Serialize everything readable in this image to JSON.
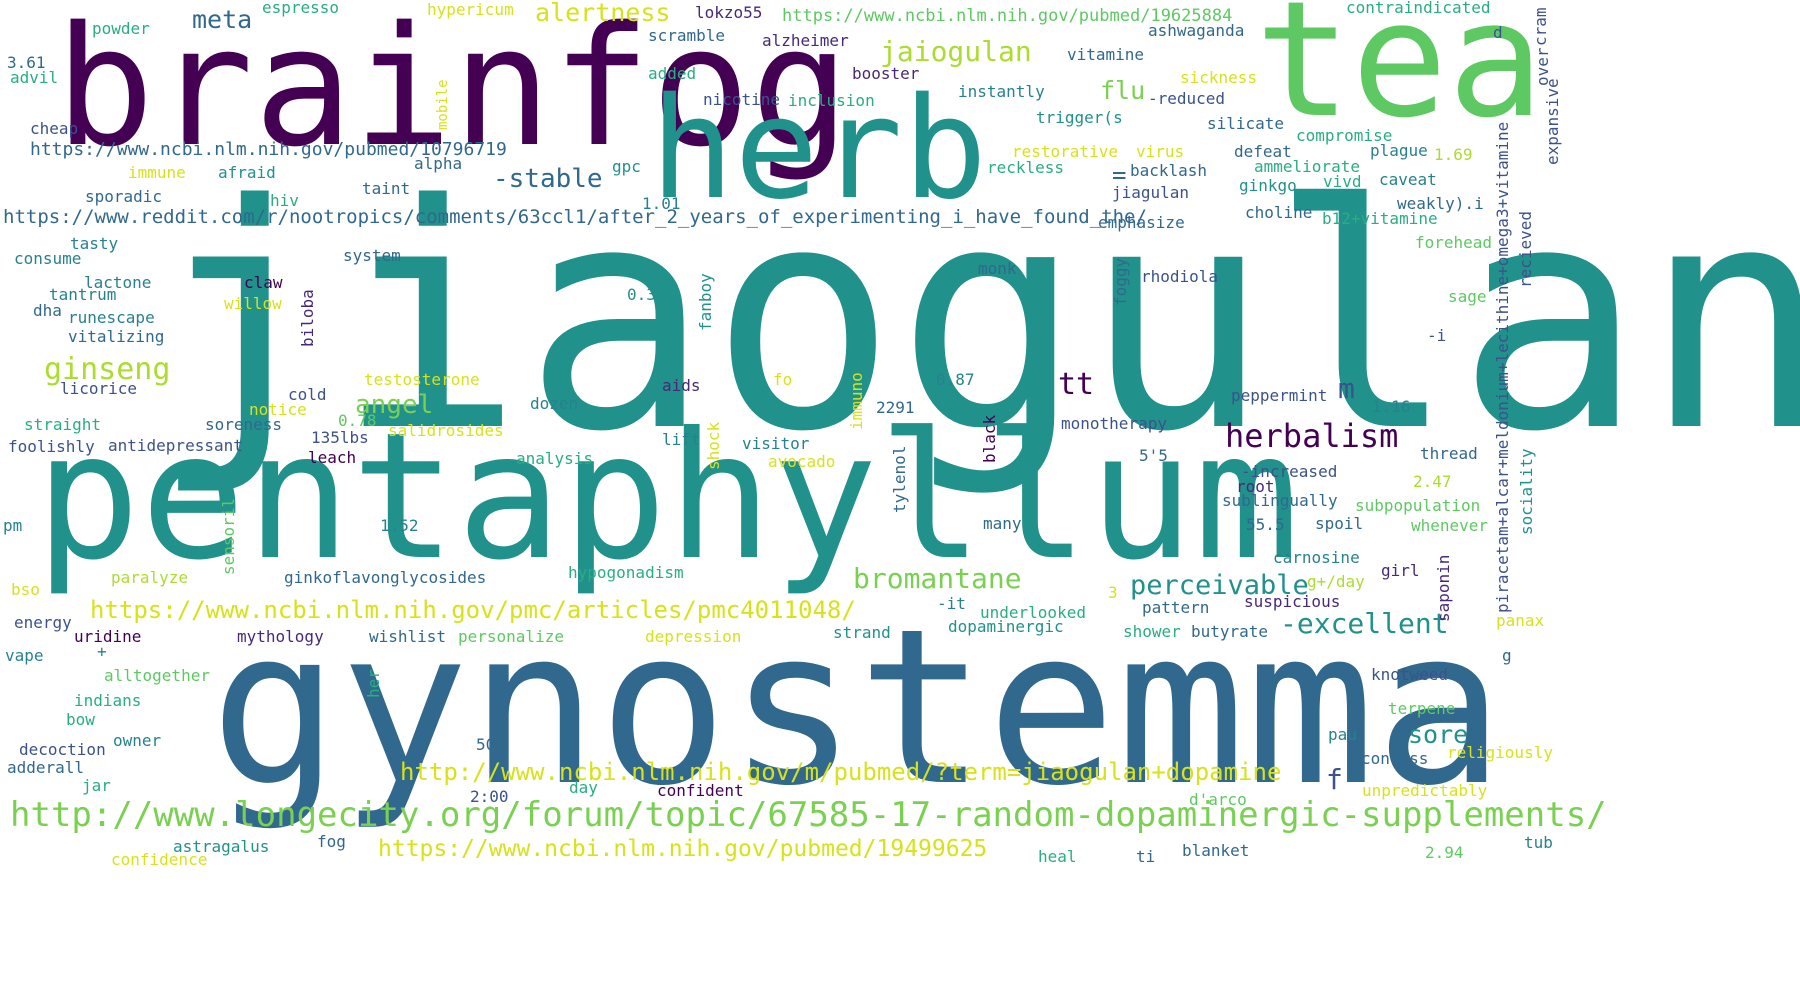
{
  "palette": {
    "c1": "#440154",
    "c2": "#472c7a",
    "c3": "#3b528b",
    "c4": "#2c728e",
    "c5": "#21918c",
    "c6": "#28ae80",
    "c7": "#5ec962",
    "c8": "#addc30",
    "c9": "#d8e219"
  },
  "words": [
    {
      "text": "jiaogulan",
      "color": "#21918c"
    },
    {
      "text": "gynostemma",
      "color": "#31688e"
    },
    {
      "text": "pentaphyllum",
      "color": "#21918c"
    },
    {
      "text": "brainfog",
      "color": "#440154"
    },
    {
      "text": "tea",
      "color": "#5ec962"
    },
    {
      "text": "herb",
      "color": "#21918c"
    },
    {
      "text": "http://www.longecity.org/forum/topic/67585-17-random-dopaminergic-supplements/",
      "color": "#7ad151"
    },
    {
      "text": "https://www.ncbi.nlm.nih.gov/pmc/articles/pmc4011048/",
      "color": "#d8e219"
    },
    {
      "text": "http://www.ncbi.nlm.nih.gov/m/pubmed/?term=jiaogulan+dopamine",
      "color": "#d8e219"
    },
    {
      "text": "https://www.ncbi.nlm.nih.gov/pubmed/19499625",
      "color": "#d8e219"
    },
    {
      "text": "https://www.reddit.com/r/nootropics/comments/63ccl1/after_2_years_of_experimenting_i_have_found_the/",
      "color": "#31688e"
    },
    {
      "text": "https://www.ncbi.nlm.nih.gov/pubmed/10796719",
      "color": "#31688e"
    },
    {
      "text": "https://www.ncbi.nlm.nih.gov/pubmed/19625884",
      "color": "#5ec962"
    },
    {
      "text": "herbalism",
      "color": "#440154"
    },
    {
      "text": "bromantane",
      "color": "#7ad151"
    },
    {
      "text": "-excellent",
      "color": "#21918c"
    },
    {
      "text": "perceivable",
      "color": "#21918c"
    },
    {
      "text": "ginseng",
      "color": "#addc30"
    },
    {
      "text": "jaiogulan",
      "color": "#addc30"
    },
    {
      "text": "alertness",
      "color": "#d8e219"
    },
    {
      "text": "-stable",
      "color": "#31688e"
    },
    {
      "text": "meta",
      "color": "#31688e"
    },
    {
      "text": "angel",
      "color": "#7ad151"
    },
    {
      "text": "tt",
      "color": "#440154"
    },
    {
      "text": "flu",
      "color": "#7ad151"
    },
    {
      "text": "sore",
      "color": "#21918c"
    },
    {
      "text": "m",
      "color": "#3b528b"
    },
    {
      "text": "f",
      "color": "#3b528b"
    },
    {
      "text": "=",
      "color": "#31688e"
    },
    {
      "text": "piracetam+alcar+meldonium+lecithine+omega3+vitamine",
      "color": "#3b528b"
    },
    {
      "text": "contraindicated",
      "color": "#28ae80"
    },
    {
      "text": "ashwaganda",
      "color": "#31688e"
    },
    {
      "text": "vitamine",
      "color": "#31688e"
    },
    {
      "text": "espresso",
      "color": "#28ae80"
    },
    {
      "text": "hypericum",
      "color": "#d8e219"
    },
    {
      "text": "lokzo55",
      "color": "#482878"
    },
    {
      "text": "scramble",
      "color": "#31688e"
    },
    {
      "text": "alzheimer",
      "color": "#482878"
    },
    {
      "text": "powder",
      "color": "#28ae80"
    },
    {
      "text": "3.61",
      "color": "#31688e"
    },
    {
      "text": "advil",
      "color": "#28ae80"
    },
    {
      "text": "mobile",
      "color": "#d8e219"
    },
    {
      "text": "added",
      "color": "#28ae80"
    },
    {
      "text": "booster",
      "color": "#482878"
    },
    {
      "text": "sickness",
      "color": "#d8e219"
    },
    {
      "text": "instantly",
      "color": "#26828e"
    },
    {
      "text": "nicotine",
      "color": "#3b528b"
    },
    {
      "text": "inclusion",
      "color": "#28ae80"
    },
    {
      "text": "-reduced",
      "color": "#3b528b"
    },
    {
      "text": "trigger(s",
      "color": "#21918c"
    },
    {
      "text": "silicate",
      "color": "#31688e"
    },
    {
      "text": "compromise",
      "color": "#28ae80"
    },
    {
      "text": "cheap",
      "color": "#3b528b"
    },
    {
      "text": "alpha",
      "color": "#31688e"
    },
    {
      "text": "restorative",
      "color": "#d8e219"
    },
    {
      "text": "defeat",
      "color": "#31688e"
    },
    {
      "text": "plague",
      "color": "#26828e"
    },
    {
      "text": "1.69",
      "color": "#addc30"
    },
    {
      "text": "immune",
      "color": "#d8e219"
    },
    {
      "text": "afraid",
      "color": "#21918c"
    },
    {
      "text": "gpc",
      "color": "#21918c"
    },
    {
      "text": "virus",
      "color": "#d8e219"
    },
    {
      "text": "ammeliorate",
      "color": "#28ae80"
    },
    {
      "text": "reckless",
      "color": "#28ae80"
    },
    {
      "text": "backlash",
      "color": "#31688e"
    },
    {
      "text": "vivd",
      "color": "#28ae80"
    },
    {
      "text": "caveat",
      "color": "#26828e"
    },
    {
      "text": "taint",
      "color": "#31688e"
    },
    {
      "text": "hiv",
      "color": "#28ae80"
    },
    {
      "text": "sporadic",
      "color": "#31688e"
    },
    {
      "text": "jiagulan",
      "color": "#3b528b"
    },
    {
      "text": "ginkgo",
      "color": "#21918c"
    },
    {
      "text": "1.01",
      "color": "#26828e"
    },
    {
      "text": "choline",
      "color": "#31688e"
    },
    {
      "text": "b12+vitamine",
      "color": "#28ae80"
    },
    {
      "text": "weakly).i",
      "color": "#31688e"
    },
    {
      "text": "emphasize",
      "color": "#31688e"
    },
    {
      "text": "tasty",
      "color": "#26828e"
    },
    {
      "text": "system",
      "color": "#31688e"
    },
    {
      "text": "consume",
      "color": "#26828e"
    },
    {
      "text": "forehead",
      "color": "#5ec962"
    },
    {
      "text": "recieved",
      "color": "#3b528b"
    },
    {
      "text": "expansive",
      "color": "#3b528b"
    },
    {
      "text": "over",
      "color": "#3b528b"
    },
    {
      "text": "cram",
      "color": "#3b528b"
    },
    {
      "text": "d",
      "color": "#3b528b"
    },
    {
      "text": "monk",
      "color": "#31688e"
    },
    {
      "text": "foggy",
      "color": "#31688e"
    },
    {
      "text": "rhodiola",
      "color": "#3b528b"
    },
    {
      "text": "lactone",
      "color": "#26828e"
    },
    {
      "text": "claw",
      "color": "#440154"
    },
    {
      "text": "tantrum",
      "color": "#26828e"
    },
    {
      "text": "willow",
      "color": "#d8e219"
    },
    {
      "text": "fanboy",
      "color": "#21918c"
    },
    {
      "text": "biloba",
      "color": "#482878"
    },
    {
      "text": "0.3",
      "color": "#21918c"
    },
    {
      "text": "dha",
      "color": "#31688e"
    },
    {
      "text": "runescape",
      "color": "#26828e"
    },
    {
      "text": "vitalizing",
      "color": "#31688e"
    },
    {
      "text": "sage",
      "color": "#5ec962"
    },
    {
      "text": "-i",
      "color": "#3b528b"
    },
    {
      "text": "licorice",
      "color": "#3b528b"
    },
    {
      "text": "testosterone",
      "color": "#d8e219"
    },
    {
      "text": "fo",
      "color": "#d8e219"
    },
    {
      "text": "immuno",
      "color": "#d8e219"
    },
    {
      "text": "0.87",
      "color": "#26828e"
    },
    {
      "text": "aids",
      "color": "#482878"
    },
    {
      "text": "cold",
      "color": "#3b528b"
    },
    {
      "text": "dozen",
      "color": "#26828e"
    },
    {
      "text": "peppermint",
      "color": "#3b528b"
    },
    {
      "text": "1.16",
      "color": "#26828e"
    },
    {
      "text": "notice",
      "color": "#d8e219"
    },
    {
      "text": "0.78",
      "color": "#5ec962"
    },
    {
      "text": "straight",
      "color": "#28ae80"
    },
    {
      "text": "soreness",
      "color": "#31688e"
    },
    {
      "text": "135lbs",
      "color": "#3b528b"
    },
    {
      "text": "2291",
      "color": "#31688e"
    },
    {
      "text": "monotherapy",
      "color": "#3b528b"
    },
    {
      "text": "salidrosides",
      "color": "#d8e219"
    },
    {
      "text": "shock",
      "color": "#d8e219"
    },
    {
      "text": "foolishly",
      "color": "#3b528b"
    },
    {
      "text": "antidepressant",
      "color": "#3b528b"
    },
    {
      "text": "leach",
      "color": "#440154"
    },
    {
      "text": "lift",
      "color": "#26828e"
    },
    {
      "text": "visitor",
      "color": "#26828e"
    },
    {
      "text": "euro",
      "color": "#21918c"
    },
    {
      "text": "black",
      "color": "#440154"
    },
    {
      "text": "thread",
      "color": "#31688e"
    },
    {
      "text": "analysis",
      "color": "#28ae80"
    },
    {
      "text": "avocado",
      "color": "#d8e219"
    },
    {
      "text": "tylenol",
      "color": "#31688e"
    },
    {
      "text": "5'5",
      "color": "#31688e"
    },
    {
      "text": "-increased",
      "color": "#3b528b"
    },
    {
      "text": "root",
      "color": "#482878"
    },
    {
      "text": "2.47",
      "color": "#addc30"
    },
    {
      "text": "sociality",
      "color": "#21918c"
    },
    {
      "text": "pm",
      "color": "#26828e"
    },
    {
      "text": "1.52",
      "color": "#26828e"
    },
    {
      "text": "sublingually",
      "color": "#31688e"
    },
    {
      "text": "subpopulation",
      "color": "#5ec962"
    },
    {
      "text": "55.5",
      "color": "#31688e"
    },
    {
      "text": "spoil",
      "color": "#31688e"
    },
    {
      "text": "whenever",
      "color": "#5ec962"
    },
    {
      "text": "many",
      "color": "#31688e"
    },
    {
      "text": "sensoril",
      "color": "#5ec962"
    },
    {
      "text": "carnosine",
      "color": "#26828e"
    },
    {
      "text": "saponin",
      "color": "#482878"
    },
    {
      "text": "girl",
      "color": "#482878"
    },
    {
      "text": "paralyze",
      "color": "#addc30"
    },
    {
      "text": "ginkoflavonglycosides",
      "color": "#31688e"
    },
    {
      "text": "hypogonadism",
      "color": "#28ae80"
    },
    {
      "text": "g+/day",
      "color": "#addc30"
    },
    {
      "text": "bso",
      "color": "#d8e219"
    },
    {
      "text": "3",
      "color": "#d8e219"
    },
    {
      "text": "suspicious",
      "color": "#482878"
    },
    {
      "text": "-it",
      "color": "#26828e"
    },
    {
      "text": "pattern",
      "color": "#31688e"
    },
    {
      "text": "energy",
      "color": "#3b528b"
    },
    {
      "text": "underlooked",
      "color": "#28ae80"
    },
    {
      "text": "panax",
      "color": "#d8e219"
    },
    {
      "text": "uridine",
      "color": "#440154"
    },
    {
      "text": "mythology",
      "color": "#482878"
    },
    {
      "text": "wishlist",
      "color": "#31688e"
    },
    {
      "text": "personalize",
      "color": "#5ec962"
    },
    {
      "text": "depression",
      "color": "#d8e219"
    },
    {
      "text": "strand",
      "color": "#21918c"
    },
    {
      "text": "dopaminergic",
      "color": "#21918c"
    },
    {
      "text": "shower",
      "color": "#28ae80"
    },
    {
      "text": "butyrate",
      "color": "#31688e"
    },
    {
      "text": "vape",
      "color": "#26828e"
    },
    {
      "text": "+",
      "color": "#26828e"
    },
    {
      "text": "g",
      "color": "#31688e"
    },
    {
      "text": "alltogether",
      "color": "#5ec962"
    },
    {
      "text": "knotweed",
      "color": "#3b528b"
    },
    {
      "text": "indians",
      "color": "#28ae80"
    },
    {
      "text": "her",
      "color": "#28ae80"
    },
    {
      "text": "terpene",
      "color": "#5ec962"
    },
    {
      "text": "bow",
      "color": "#28ae80"
    },
    {
      "text": "owner",
      "color": "#26828e"
    },
    {
      "text": "decoction",
      "color": "#3b528b"
    },
    {
      "text": "50",
      "color": "#31688e"
    },
    {
      "text": "pau",
      "color": "#26828e"
    },
    {
      "text": "confess",
      "color": "#31688e"
    },
    {
      "text": "religiously",
      "color": "#d8e219"
    },
    {
      "text": "adderall",
      "color": "#31688e"
    },
    {
      "text": "jar",
      "color": "#28ae80"
    },
    {
      "text": "day",
      "color": "#28ae80"
    },
    {
      "text": "confident",
      "color": "#440154"
    },
    {
      "text": "unpredictably",
      "color": "#d8e219"
    },
    {
      "text": "2:00",
      "color": "#3b528b"
    },
    {
      "text": "d'arco",
      "color": "#5ec962"
    },
    {
      "text": "fog",
      "color": "#31688e"
    },
    {
      "text": "astragalus",
      "color": "#21918c"
    },
    {
      "text": "confidence",
      "color": "#d8e219"
    },
    {
      "text": "heal",
      "color": "#28ae80"
    },
    {
      "text": "ti",
      "color": "#31688e"
    },
    {
      "text": "blanket",
      "color": "#31688e"
    },
    {
      "text": "2.94",
      "color": "#5ec962"
    },
    {
      "text": "tub",
      "color": "#26828e"
    }
  ]
}
